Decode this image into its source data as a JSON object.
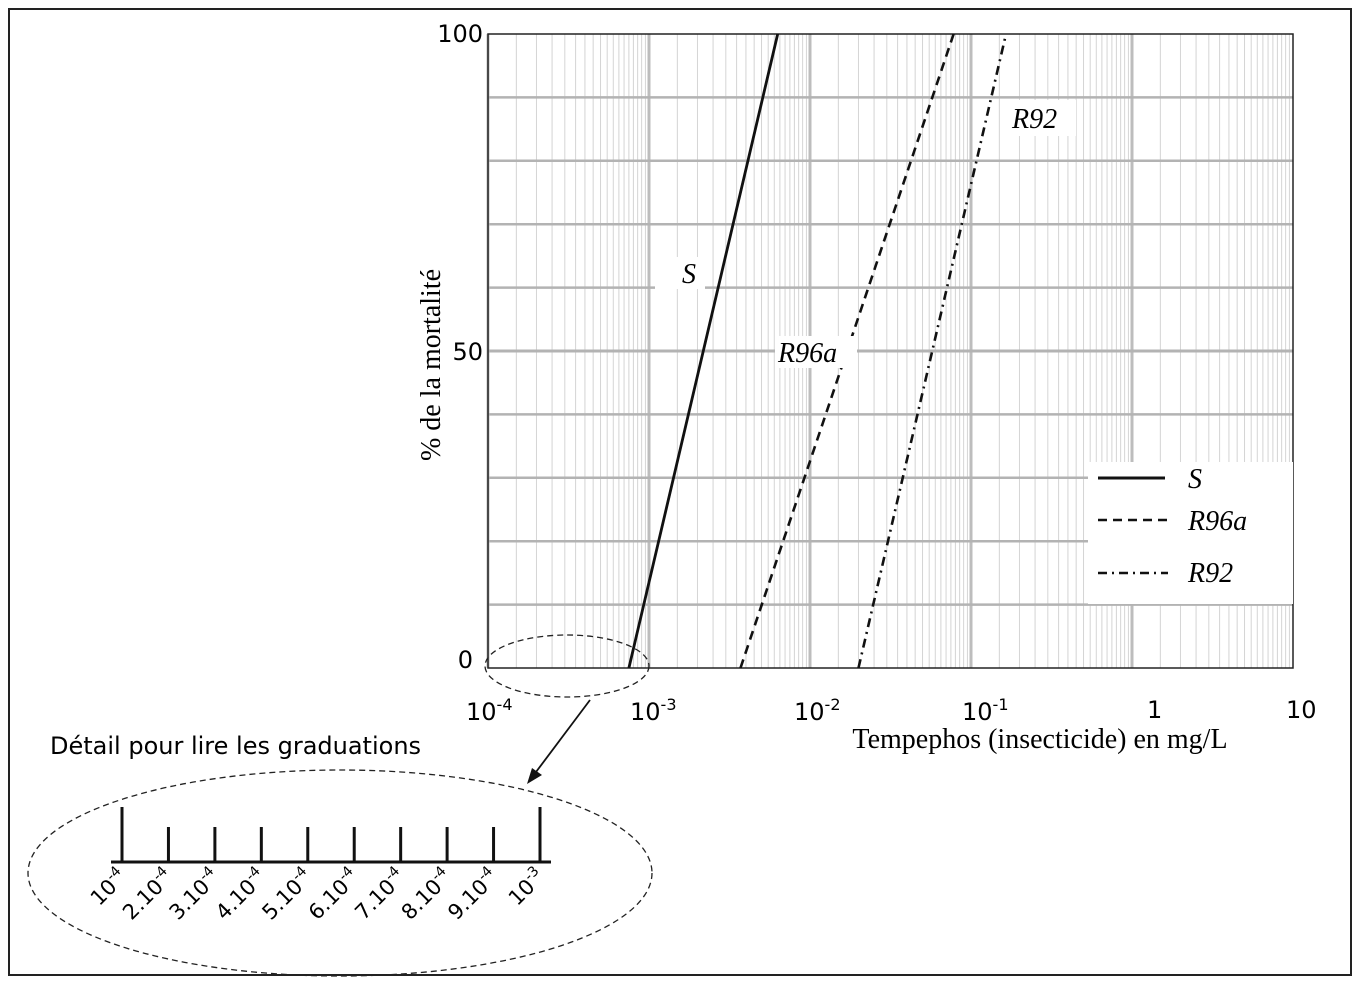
{
  "chart_data": {
    "type": "line",
    "x_scale": "log",
    "xlim": [
      0.0001,
      10
    ],
    "ylim": [
      0,
      100
    ],
    "xlabel": "Tempephos (insecticide) en mg/L",
    "ylabel": "% de la mortalité",
    "grid": true,
    "x_ticks": [
      {
        "base": "10",
        "exp": "-4",
        "label": ""
      },
      {
        "base": "10",
        "exp": "-3",
        "label": ""
      },
      {
        "base": "10",
        "exp": "-2",
        "label": ""
      },
      {
        "base": "10",
        "exp": "-1",
        "label": ""
      },
      {
        "base": "",
        "exp": "",
        "label": "1"
      },
      {
        "base": "",
        "exp": "",
        "label": "10"
      }
    ],
    "y_ticks": [
      "0",
      "50",
      "100"
    ],
    "legend_position": "bottom-right",
    "series": [
      {
        "name": "S",
        "dash": "solid",
        "x": [
          0.00075,
          0.0063
        ],
        "y": [
          0,
          100
        ]
      },
      {
        "name": "R96a",
        "dash": "dashed",
        "x": [
          0.0037,
          0.078
        ],
        "y": [
          0,
          100
        ]
      },
      {
        "name": "R92",
        "dash": "dashdot",
        "x": [
          0.02,
          0.165
        ],
        "y": [
          0,
          100
        ]
      }
    ],
    "annotations": [
      "S",
      "R96a",
      "R92"
    ]
  },
  "detail": {
    "title": "Détail pour lire les graduations",
    "ticks": [
      {
        "base": "10",
        "exp": "-4"
      },
      {
        "base": "2.10",
        "exp": "-4"
      },
      {
        "base": "3.10",
        "exp": "-4"
      },
      {
        "base": "4.10",
        "exp": "-4"
      },
      {
        "base": "5.10",
        "exp": "-4"
      },
      {
        "base": "6.10",
        "exp": "-4"
      },
      {
        "base": "7.10",
        "exp": "-4"
      },
      {
        "base": "8.10",
        "exp": "-4"
      },
      {
        "base": "9.10",
        "exp": "-4"
      },
      {
        "base": "10",
        "exp": "-3"
      }
    ]
  }
}
